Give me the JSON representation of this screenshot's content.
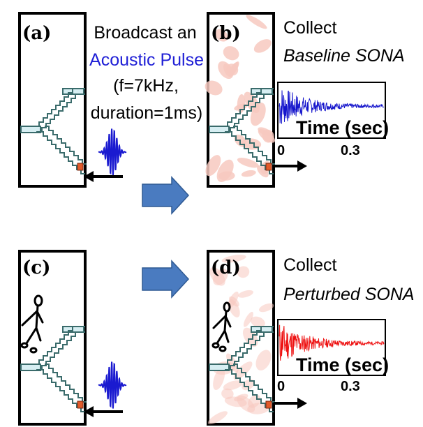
{
  "panels": {
    "a": {
      "label": "(a)"
    },
    "b": {
      "label": "(b)"
    },
    "c": {
      "label": "(c)"
    },
    "d": {
      "label": "(d)"
    }
  },
  "broadcast": {
    "line1": "Broadcast an",
    "line2": "Acoustic Pulse",
    "line3": "(f=7kHz,",
    "line4": "duration=1ms)"
  },
  "collect_b": {
    "verb": "Collect",
    "what": "Baseline SONA"
  },
  "collect_d": {
    "verb": "Collect",
    "what": "Perturbed SONA"
  },
  "chart_data": [
    {
      "type": "line",
      "series": [
        {
          "name": "Baseline SONA",
          "color": "#1515cc"
        }
      ],
      "xlabel": "Time (sec)",
      "xticks": [
        "0",
        "0.3"
      ],
      "xlim": [
        0,
        0.45
      ]
    },
    {
      "type": "line",
      "series": [
        {
          "name": "Perturbed SONA",
          "color": "#ee1111"
        }
      ],
      "xlabel": "Time (sec)",
      "xticks": [
        "0",
        "0.3"
      ],
      "xlim": [
        0,
        0.45
      ]
    }
  ],
  "colors": {
    "blue_text": "#1f1fd6",
    "red_text": "#ee1111",
    "arrow_fill": "#4a7bc0",
    "speaker": "#e25a2a",
    "blob": "#f7c9bf"
  },
  "icons": [
    "stairwell-icon",
    "person-walking-icon",
    "pulse-wave-icon",
    "speaker-icon",
    "right-arrow-icon"
  ]
}
